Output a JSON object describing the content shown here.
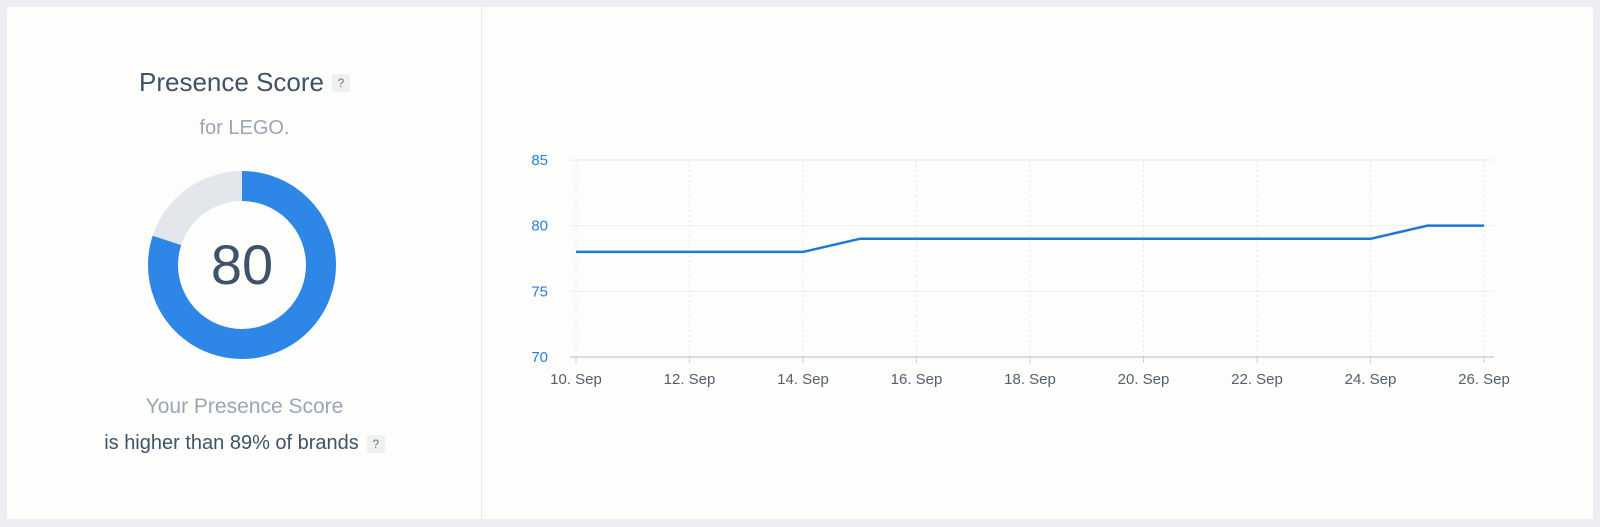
{
  "widget": {
    "title": "Presence Score",
    "title_help": "?",
    "subtitle": "for LEGO.",
    "score": "80",
    "score_fraction": 0.8,
    "caption_line1": "Your Presence Score",
    "caption_line2": "is higher than 89% of brands",
    "caption_help": "?"
  },
  "colors": {
    "accent": "#2e86e6",
    "donut_track": "#e3e7eb",
    "text_dark": "#3e5367",
    "text_muted": "#9aa6b3",
    "line": "#1f78d1"
  },
  "chart_data": {
    "type": "line",
    "x": [
      "2023-09-10",
      "2023-09-11",
      "2023-09-12",
      "2023-09-13",
      "2023-09-14",
      "2023-09-15",
      "2023-09-16",
      "2023-09-17",
      "2023-09-18",
      "2023-09-19",
      "2023-09-20",
      "2023-09-21",
      "2023-09-22",
      "2023-09-23",
      "2023-09-24",
      "2023-09-25",
      "2023-09-26"
    ],
    "series": [
      {
        "values": [
          78,
          78,
          78,
          78,
          78,
          79,
          79,
          79,
          79,
          79,
          79,
          79,
          79,
          79,
          79,
          80,
          80
        ]
      }
    ],
    "x_tick_labels": [
      "10. Sep",
      "12. Sep",
      "14. Sep",
      "16. Sep",
      "18. Sep",
      "20. Sep",
      "22. Sep",
      "24. Sep",
      "26. Sep"
    ],
    "y_tick_labels": [
      "70",
      "75",
      "80",
      "85"
    ],
    "ylim": [
      70,
      85
    ],
    "grid": true,
    "title": "",
    "xlabel": "",
    "ylabel": ""
  }
}
